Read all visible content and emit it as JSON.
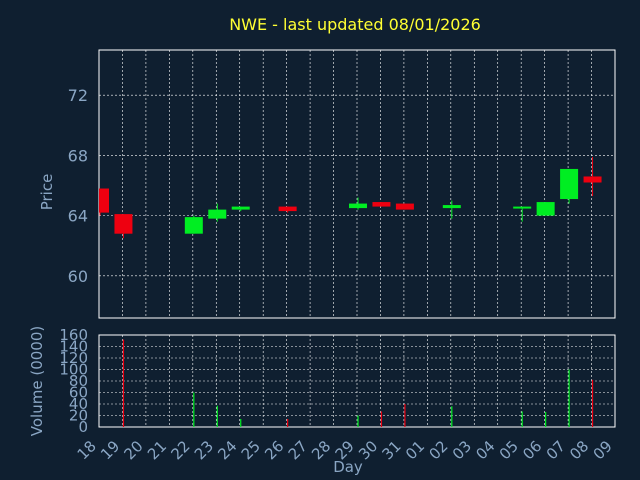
{
  "colors": {
    "background": "#0f1f30",
    "title": "#ffff33",
    "axis_text": "#8aa6c4",
    "frame": "#ffffff",
    "grid": "#ffffff",
    "up": "#00ee22",
    "down": "#ee0010"
  },
  "chart_data": [
    {
      "type": "candlestick",
      "title": "NWE - last updated 08/01/2026",
      "ylabel": "Price",
      "ylim": [
        57.2,
        75.0
      ],
      "yticks": [
        60,
        64,
        68,
        72
      ],
      "grid": true,
      "x": [
        "18",
        "19",
        "20",
        "21",
        "22",
        "23",
        "24",
        "25",
        "26",
        "27",
        "28",
        "29",
        "30",
        "31",
        "01",
        "02",
        "03",
        "04",
        "05",
        "06",
        "07",
        "08",
        "09"
      ],
      "candles": [
        {
          "day": "18",
          "open": 65.8,
          "close": 64.2,
          "high": 65.8,
          "low": 64.0,
          "direction": "down"
        },
        {
          "day": "19",
          "open": 64.1,
          "close": 62.8,
          "high": 64.1,
          "low": 62.5,
          "direction": "down"
        },
        {
          "day": "22",
          "open": 62.8,
          "close": 63.9,
          "high": 64.0,
          "low": 62.8,
          "direction": "up"
        },
        {
          "day": "23",
          "open": 63.8,
          "close": 64.4,
          "high": 64.8,
          "low": 63.6,
          "direction": "up"
        },
        {
          "day": "24",
          "open": 64.4,
          "close": 64.6,
          "high": 64.6,
          "low": 64.3,
          "direction": "up"
        },
        {
          "day": "26",
          "open": 64.6,
          "close": 64.3,
          "high": 64.6,
          "low": 64.2,
          "direction": "down"
        },
        {
          "day": "29",
          "open": 64.5,
          "close": 64.8,
          "high": 65.2,
          "low": 64.4,
          "direction": "up"
        },
        {
          "day": "30",
          "open": 64.9,
          "close": 64.6,
          "high": 64.9,
          "low": 64.6,
          "direction": "down"
        },
        {
          "day": "31",
          "open": 64.8,
          "close": 64.4,
          "high": 64.8,
          "low": 64.4,
          "direction": "down"
        },
        {
          "day": "02",
          "open": 64.5,
          "close": 64.7,
          "high": 65.0,
          "low": 63.8,
          "direction": "up"
        },
        {
          "day": "05",
          "open": 64.5,
          "close": 64.6,
          "high": 64.6,
          "low": 63.6,
          "direction": "up"
        },
        {
          "day": "06",
          "open": 64.0,
          "close": 64.9,
          "high": 64.9,
          "low": 64.0,
          "direction": "up"
        },
        {
          "day": "07",
          "open": 65.1,
          "close": 67.1,
          "high": 67.1,
          "low": 64.8,
          "direction": "up"
        },
        {
          "day": "08",
          "open": 66.6,
          "close": 66.2,
          "high": 67.9,
          "low": 65.3,
          "direction": "down"
        }
      ]
    },
    {
      "type": "bar",
      "ylabel": "Volume (0000)",
      "xlabel": "Day",
      "ylim": [
        0,
        160
      ],
      "yticks": [
        0,
        20,
        40,
        60,
        80,
        100,
        120,
        140,
        160
      ],
      "grid": true,
      "categories": [
        "18",
        "19",
        "20",
        "21",
        "22",
        "23",
        "24",
        "25",
        "26",
        "27",
        "28",
        "29",
        "30",
        "31",
        "01",
        "02",
        "03",
        "04",
        "05",
        "06",
        "07",
        "08",
        "09"
      ],
      "bars": [
        {
          "day": "19",
          "value": 152,
          "direction": "down"
        },
        {
          "day": "22",
          "value": 60,
          "direction": "up"
        },
        {
          "day": "23",
          "value": 37,
          "direction": "up"
        },
        {
          "day": "24",
          "value": 14,
          "direction": "up"
        },
        {
          "day": "26",
          "value": 14,
          "direction": "down"
        },
        {
          "day": "29",
          "value": 20,
          "direction": "up"
        },
        {
          "day": "30",
          "value": 27,
          "direction": "down"
        },
        {
          "day": "31",
          "value": 40,
          "direction": "down"
        },
        {
          "day": "02",
          "value": 36,
          "direction": "up"
        },
        {
          "day": "05",
          "value": 27,
          "direction": "up"
        },
        {
          "day": "06",
          "value": 26,
          "direction": "up"
        },
        {
          "day": "07",
          "value": 100,
          "direction": "up"
        },
        {
          "day": "08",
          "value": 82,
          "direction": "down"
        }
      ]
    }
  ]
}
